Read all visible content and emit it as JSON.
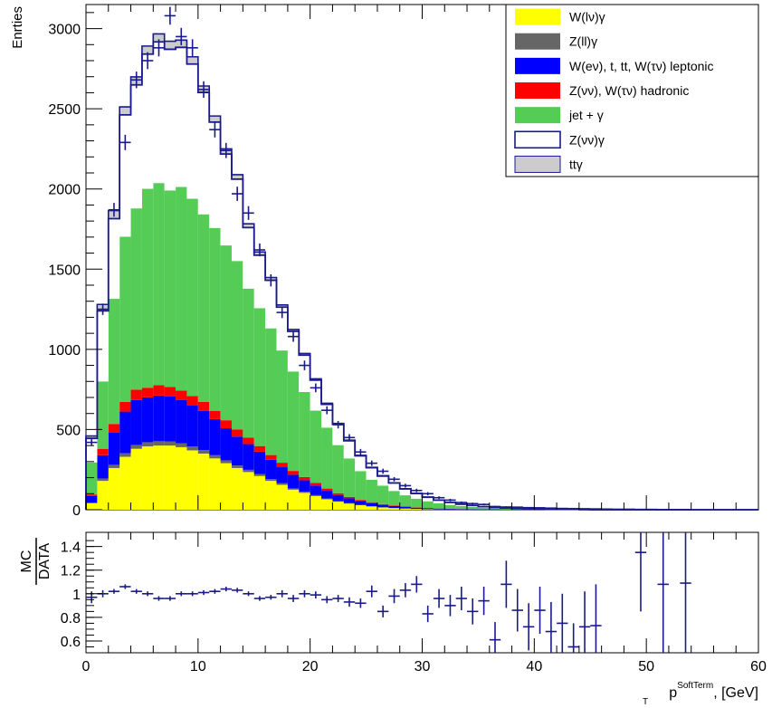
{
  "chart_data": [
    {
      "type": "bar",
      "stacked": true,
      "ylabel": "Enrties",
      "xlim": [
        0,
        60
      ],
      "ylim": [
        0,
        3150
      ],
      "x_ticks": [
        0,
        10,
        20,
        30,
        40,
        50,
        60
      ],
      "y_ticks": [
        0,
        500,
        1000,
        1500,
        2000,
        2500,
        3000
      ],
      "bin_width": 1,
      "x": [
        0.5,
        1.5,
        2.5,
        3.5,
        4.5,
        5.5,
        6.5,
        7.5,
        8.5,
        9.5,
        10.5,
        11.5,
        12.5,
        13.5,
        14.5,
        15.5,
        16.5,
        17.5,
        18.5,
        19.5,
        20.5,
        21.5,
        22.5,
        23.5,
        24.5,
        25.5,
        26.5,
        27.5,
        28.5,
        29.5,
        30.5,
        31.5,
        32.5,
        33.5,
        34.5,
        35.5,
        36.5,
        37.5,
        38.5,
        39.5,
        40.5,
        41.5,
        42.5,
        43.5,
        44.5,
        45.5,
        46.5,
        47.5,
        48.5,
        49.5,
        50.5,
        51.5,
        52.5,
        53.5,
        54.5,
        55.5,
        56.5,
        57.5,
        58.5,
        59.5
      ],
      "series": [
        {
          "name": "W(lν)γ",
          "color": "#ffff00",
          "values": [
            40,
            180,
            260,
            330,
            380,
            395,
            400,
            400,
            390,
            370,
            350,
            320,
            290,
            260,
            235,
            210,
            180,
            155,
            125,
            105,
            85,
            65,
            50,
            38,
            28,
            20,
            14,
            10,
            7,
            5,
            3,
            2,
            1,
            1,
            1,
            0,
            0,
            0,
            0,
            0,
            0,
            0,
            0,
            0,
            0,
            0,
            0,
            0,
            0,
            0,
            0,
            0,
            0,
            0,
            0,
            0,
            0,
            0,
            0,
            0
          ]
        },
        {
          "name": "Z(ll)γ",
          "color": "#666666",
          "values": [
            5,
            15,
            20,
            22,
            24,
            26,
            27,
            26,
            25,
            24,
            22,
            20,
            18,
            16,
            14,
            12,
            11,
            10,
            8,
            7,
            6,
            5,
            4,
            3,
            2,
            2,
            1,
            1,
            1,
            0,
            0,
            0,
            0,
            0,
            0,
            0,
            0,
            0,
            0,
            0,
            0,
            0,
            0,
            0,
            0,
            0,
            0,
            0,
            0,
            0,
            0,
            0,
            0,
            0,
            0,
            0,
            0,
            0,
            0,
            0
          ]
        },
        {
          "name": "W(eν), t, tt, W(τν) leptonic",
          "color": "#0000ff",
          "values": [
            40,
            145,
            200,
            260,
            280,
            280,
            285,
            280,
            270,
            255,
            245,
            225,
            200,
            180,
            160,
            140,
            120,
            100,
            85,
            72,
            60,
            48,
            38,
            30,
            24,
            19,
            15,
            12,
            9,
            7,
            6,
            5,
            4,
            3,
            3,
            2,
            2,
            1,
            1,
            1,
            1,
            0,
            0,
            0,
            0,
            0,
            0,
            0,
            0,
            0,
            0,
            0,
            0,
            0,
            0,
            0,
            0,
            0,
            0,
            0
          ]
        },
        {
          "name": "Z(νν), W(τν) hadronic",
          "color": "#ff0000",
          "values": [
            10,
            40,
            55,
            60,
            65,
            60,
            65,
            60,
            58,
            60,
            55,
            52,
            50,
            45,
            40,
            35,
            30,
            28,
            24,
            20,
            17,
            14,
            11,
            9,
            7,
            6,
            5,
            4,
            3,
            2,
            2,
            1,
            1,
            1,
            0,
            0,
            0,
            0,
            0,
            0,
            0,
            0,
            0,
            0,
            0,
            0,
            0,
            0,
            0,
            0,
            0,
            0,
            0,
            0,
            0,
            0,
            0,
            0,
            0,
            0
          ]
        },
        {
          "name": "jet + γ",
          "color": "#55cc55",
          "values": [
            200,
            420,
            780,
            1030,
            1130,
            1240,
            1260,
            1225,
            1270,
            1230,
            1170,
            1140,
            1090,
            1050,
            930,
            860,
            790,
            700,
            620,
            530,
            450,
            380,
            300,
            240,
            180,
            140,
            115,
            90,
            70,
            55,
            42,
            32,
            24,
            18,
            14,
            10,
            8,
            6,
            4,
            3,
            2,
            2,
            1,
            1,
            1,
            0,
            0,
            0,
            0,
            0,
            0,
            0,
            0,
            0,
            0,
            0,
            0,
            0,
            0,
            0
          ]
        },
        {
          "name": "Z(νν)γ",
          "color": "#ffffff",
          "values": [
            150,
            440,
            500,
            760,
            770,
            840,
            880,
            880,
            870,
            840,
            760,
            660,
            570,
            510,
            380,
            330,
            300,
            270,
            250,
            230,
            190,
            145,
            130,
            110,
            95,
            75,
            60,
            50,
            40,
            32,
            25,
            20,
            16,
            12,
            9,
            7,
            5,
            4,
            3,
            2,
            2,
            1,
            1,
            1,
            0,
            0,
            0,
            0,
            0,
            0,
            0,
            0,
            0,
            0,
            0,
            0,
            0,
            0,
            0,
            0
          ]
        },
        {
          "name": "ttγ",
          "color": "#cccccc",
          "values": [
            15,
            40,
            50,
            50,
            50,
            50,
            50,
            50,
            45,
            45,
            40,
            38,
            32,
            28,
            24,
            20,
            17,
            14,
            12,
            10,
            8,
            7,
            5,
            4,
            3,
            2,
            2,
            1,
            1,
            1,
            1,
            0,
            0,
            0,
            0,
            0,
            0,
            0,
            0,
            0,
            0,
            0,
            0,
            0,
            0,
            0,
            0,
            0,
            0,
            0,
            0,
            0,
            0,
            0,
            0,
            0,
            0,
            0,
            0,
            0
          ]
        }
      ],
      "data_points": {
        "color": "#1a1a8c",
        "y": [
          420,
          1250,
          1870,
          2290,
          2680,
          2800,
          2880,
          3080,
          2950,
          2880,
          2620,
          2370,
          2240,
          1970,
          1850,
          1620,
          1430,
          1230,
          1080,
          900,
          760,
          620,
          530,
          450,
          360,
          290,
          240,
          190,
          150,
          120,
          100,
          75,
          60,
          45,
          38,
          33,
          20,
          17,
          16,
          13,
          12,
          10,
          8,
          7,
          6,
          5,
          4,
          3,
          3,
          2,
          2,
          1,
          1,
          1,
          0,
          0,
          0,
          0,
          0,
          0
        ]
      },
      "legend": "top-right"
    },
    {
      "type": "scatter",
      "ylabel_num": "MC",
      "ylabel_den": "DATA",
      "xlabel_main": "p",
      "xlabel_sub": "T",
      "xlabel_sup": "SoftTerm",
      "xlabel_rest": ", [GeV]",
      "xlim": [
        0,
        60
      ],
      "ylim": [
        0.5,
        1.52
      ],
      "x_ticks": [
        0,
        10,
        20,
        30,
        40,
        50,
        60
      ],
      "y_ticks": [
        0.6,
        0.8,
        1,
        1.2,
        1.4
      ],
      "y_tick_labels": [
        "0.6",
        "0.8",
        "1",
        "1.2",
        "1.4"
      ],
      "color": "#1a1a8c",
      "points": [
        {
          "x": 0.5,
          "y": 0.97,
          "err": 0.05
        },
        {
          "x": 1.5,
          "y": 1.0,
          "err": 0.03
        },
        {
          "x": 2.5,
          "y": 1.02,
          "err": 0.02
        },
        {
          "x": 3.5,
          "y": 1.06,
          "err": 0.02
        },
        {
          "x": 4.5,
          "y": 1.02,
          "err": 0.02
        },
        {
          "x": 5.5,
          "y": 1.0,
          "err": 0.02
        },
        {
          "x": 6.5,
          "y": 0.96,
          "err": 0.02
        },
        {
          "x": 7.5,
          "y": 0.96,
          "err": 0.02
        },
        {
          "x": 8.5,
          "y": 1.0,
          "err": 0.02
        },
        {
          "x": 9.5,
          "y": 1.0,
          "err": 0.02
        },
        {
          "x": 10.5,
          "y": 1.01,
          "err": 0.02
        },
        {
          "x": 11.5,
          "y": 1.02,
          "err": 0.02
        },
        {
          "x": 12.5,
          "y": 1.04,
          "err": 0.02
        },
        {
          "x": 13.5,
          "y": 1.03,
          "err": 0.02
        },
        {
          "x": 14.5,
          "y": 1.0,
          "err": 0.02
        },
        {
          "x": 15.5,
          "y": 0.96,
          "err": 0.02
        },
        {
          "x": 16.5,
          "y": 0.97,
          "err": 0.02
        },
        {
          "x": 17.5,
          "y": 1.0,
          "err": 0.03
        },
        {
          "x": 18.5,
          "y": 0.96,
          "err": 0.03
        },
        {
          "x": 19.5,
          "y": 1.0,
          "err": 0.03
        },
        {
          "x": 20.5,
          "y": 0.99,
          "err": 0.03
        },
        {
          "x": 21.5,
          "y": 0.95,
          "err": 0.03
        },
        {
          "x": 22.5,
          "y": 0.96,
          "err": 0.03
        },
        {
          "x": 23.5,
          "y": 0.93,
          "err": 0.04
        },
        {
          "x": 24.5,
          "y": 0.92,
          "err": 0.04
        },
        {
          "x": 25.5,
          "y": 1.02,
          "err": 0.05
        },
        {
          "x": 26.5,
          "y": 0.85,
          "err": 0.05
        },
        {
          "x": 27.5,
          "y": 0.98,
          "err": 0.06
        },
        {
          "x": 28.5,
          "y": 1.03,
          "err": 0.06
        },
        {
          "x": 29.5,
          "y": 1.08,
          "err": 0.07
        },
        {
          "x": 30.5,
          "y": 0.83,
          "err": 0.07
        },
        {
          "x": 31.5,
          "y": 0.96,
          "err": 0.08
        },
        {
          "x": 32.5,
          "y": 0.9,
          "err": 0.09
        },
        {
          "x": 33.5,
          "y": 0.96,
          "err": 0.1
        },
        {
          "x": 34.5,
          "y": 0.85,
          "err": 0.11
        },
        {
          "x": 35.5,
          "y": 0.94,
          "err": 0.12
        },
        {
          "x": 36.5,
          "y": 0.61,
          "err": 0.15
        },
        {
          "x": 37.5,
          "y": 1.08,
          "err": 0.2
        },
        {
          "x": 38.5,
          "y": 0.86,
          "err": 0.18
        },
        {
          "x": 39.5,
          "y": 0.72,
          "err": 0.2
        },
        {
          "x": 40.5,
          "y": 0.86,
          "err": 0.2
        },
        {
          "x": 41.5,
          "y": 0.68,
          "err": 0.25
        },
        {
          "x": 42.5,
          "y": 0.75,
          "err": 0.25
        },
        {
          "x": 43.5,
          "y": 0.55,
          "err": 0.2
        },
        {
          "x": 44.5,
          "y": 0.72,
          "err": 0.3
        },
        {
          "x": 45.5,
          "y": 0.73,
          "err": 0.35
        },
        {
          "x": 49.5,
          "y": 1.35,
          "err": 0.5
        },
        {
          "x": 51.5,
          "y": 1.08,
          "err": 0.6
        },
        {
          "x": 53.5,
          "y": 1.09,
          "err": 0.6
        }
      ]
    }
  ]
}
